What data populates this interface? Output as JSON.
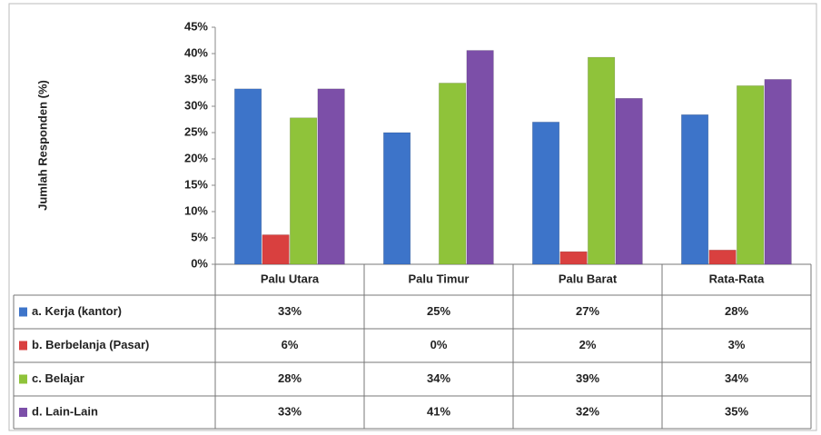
{
  "chart_data": {
    "type": "bar",
    "y_label": "Jumlah Responden (%)",
    "categories": [
      "Palu Utara",
      "Palu Timur",
      "Palu Barat",
      "Rata-Rata"
    ],
    "ylim": [
      0,
      45
    ],
    "yticks": [
      {
        "value": 0,
        "label": "0%"
      },
      {
        "value": 5,
        "label": "5%"
      },
      {
        "value": 10,
        "label": "10%"
      },
      {
        "value": 15,
        "label": "15%"
      },
      {
        "value": 20,
        "label": "20%"
      },
      {
        "value": 25,
        "label": "25%"
      },
      {
        "value": 30,
        "label": "30%"
      },
      {
        "value": 35,
        "label": "35%"
      },
      {
        "value": 40,
        "label": "40%"
      },
      {
        "value": 45,
        "label": "45%"
      }
    ],
    "series": [
      {
        "name": "a. Kerja (kantor)",
        "color": "#3d74c9",
        "values": [
          33.3,
          25,
          27,
          28.4
        ],
        "value_labels": [
          "33%",
          "25%",
          "27%",
          "28%"
        ]
      },
      {
        "name": "b. Berbelanja (Pasar)",
        "color": "#d9403f",
        "values": [
          5.6,
          0,
          2.4,
          2.7
        ],
        "value_labels": [
          "6%",
          "0%",
          "2%",
          "3%"
        ]
      },
      {
        "name": "c. Belajar",
        "color": "#8fc33a",
        "values": [
          27.8,
          34.4,
          39.3,
          33.9
        ],
        "value_labels": [
          "28%",
          "34%",
          "39%",
          "34%"
        ]
      },
      {
        "name": "d. Lain-Lain",
        "color": "#7c4fa8",
        "values": [
          33.3,
          40.6,
          31.5,
          35.1
        ],
        "value_labels": [
          "33%",
          "41%",
          "32%",
          "35%"
        ]
      }
    ]
  }
}
